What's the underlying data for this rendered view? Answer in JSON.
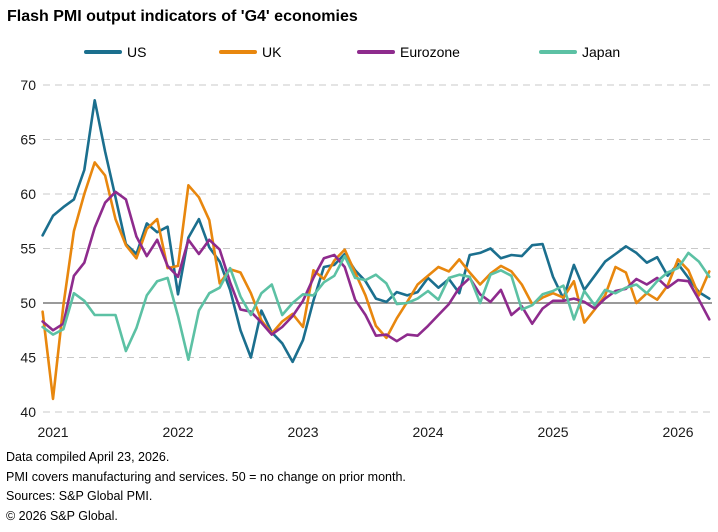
{
  "title": "Flash PMI output indicators of 'G4' economies",
  "footer": {
    "lines": [
      "Data compiled April 23, 2026.",
      "PMI covers manufacturing and services. 50 = no change on prior month.",
      "Sources: S&P Global PMI.",
      "© 2026 S&P Global."
    ]
  },
  "colors": {
    "grid_dashed": "#c9c9c9",
    "reference_line": "#8c8c8c",
    "axis_text": "#1a1a1a"
  },
  "chart_data": {
    "type": "line",
    "title": "Flash PMI output indicators of 'G4' economies",
    "frequency": "monthly",
    "x_start": "2020-12",
    "x_end": "2026-04",
    "x_tick_labels": [
      "2021",
      "2022",
      "2023",
      "2024",
      "2025",
      "2026"
    ],
    "ylim": [
      40,
      70
    ],
    "y_ticks": [
      40,
      45,
      50,
      55,
      60,
      65,
      70
    ],
    "reference_line": 50,
    "grid": "horizontal-dashed",
    "legend_position": "top",
    "series": [
      {
        "name": "US",
        "color": "#1b6f8e",
        "values": [
          56.2,
          58.0,
          58.8,
          59.5,
          62.2,
          68.6,
          63.9,
          59.7,
          55.4,
          54.5,
          57.3,
          56.5,
          57.0,
          50.8,
          56.0,
          57.7,
          55.1,
          53.8,
          51.2,
          47.5,
          45.0,
          49.3,
          47.3,
          46.3,
          44.6,
          46.6,
          50.2,
          53.3,
          53.5,
          54.5,
          53.0,
          52.0,
          50.4,
          50.1,
          51.0,
          50.7,
          51.0,
          52.3,
          51.4,
          52.2,
          50.9,
          54.4,
          54.6,
          55.0,
          54.1,
          54.4,
          54.3,
          55.3,
          55.4,
          52.4,
          50.4,
          53.5,
          51.2,
          52.5,
          53.8,
          54.5,
          55.2,
          54.6,
          53.7,
          54.2,
          52.5,
          53.6,
          52.3,
          51.0,
          50.4
        ]
      },
      {
        "name": "UK",
        "color": "#e8870e",
        "values": [
          49.2,
          41.2,
          49.8,
          56.6,
          60.0,
          62.9,
          61.7,
          57.7,
          55.3,
          54.1,
          56.8,
          57.7,
          53.2,
          53.4,
          60.8,
          59.7,
          57.6,
          51.8,
          53.1,
          52.8,
          50.9,
          48.4,
          47.2,
          48.3,
          49.0,
          47.8,
          53.0,
          52.2,
          53.9,
          54.9,
          52.8,
          50.7,
          47.9,
          46.8,
          48.6,
          50.1,
          51.7,
          52.5,
          53.3,
          52.9,
          54.0,
          52.8,
          51.7,
          52.7,
          53.4,
          52.9,
          51.7,
          49.9,
          50.5,
          50.9,
          50.5,
          52.0,
          48.2,
          49.4,
          50.7,
          53.3,
          52.8,
          50.0,
          50.9,
          50.3,
          51.6,
          54.0,
          53.0,
          50.7,
          52.9
        ]
      },
      {
        "name": "Eurozone",
        "color": "#8e2b8d",
        "values": [
          48.3,
          47.5,
          48.1,
          52.5,
          53.7,
          56.9,
          59.2,
          60.2,
          59.5,
          56.1,
          54.3,
          55.8,
          53.4,
          52.4,
          55.8,
          54.5,
          55.8,
          54.9,
          51.9,
          49.4,
          49.2,
          48.2,
          47.1,
          47.8,
          48.8,
          50.2,
          52.3,
          54.1,
          54.4,
          53.3,
          50.3,
          48.9,
          47.0,
          47.1,
          46.5,
          47.1,
          47.0,
          47.9,
          48.9,
          49.9,
          51.4,
          52.3,
          50.8,
          50.1,
          51.2,
          48.9,
          49.7,
          48.1,
          49.5,
          50.2,
          50.2,
          50.4,
          50.1,
          49.5,
          50.4,
          51.1,
          51.3,
          52.2,
          51.7,
          52.3,
          51.4,
          52.1,
          52.0,
          50.3,
          48.5
        ]
      },
      {
        "name": "Japan",
        "color": "#5cc1a4",
        "values": [
          47.8,
          47.1,
          47.6,
          50.9,
          50.2,
          48.9,
          48.9,
          48.9,
          45.6,
          47.7,
          50.7,
          52.0,
          52.3,
          48.8,
          44.8,
          49.3,
          50.9,
          51.4,
          53.2,
          50.6,
          48.9,
          50.9,
          51.7,
          48.9,
          50.0,
          50.8,
          50.7,
          51.9,
          52.5,
          54.3,
          52.3,
          52.1,
          52.6,
          51.8,
          49.9,
          50.0,
          50.4,
          51.1,
          50.3,
          52.3,
          52.6,
          52.4,
          50.0,
          52.6,
          53.0,
          52.5,
          49.4,
          49.8,
          50.8,
          51.1,
          51.6,
          48.5,
          51.1,
          49.8,
          51.2,
          50.9,
          51.4,
          51.7,
          50.9,
          52.0,
          52.8,
          53.2,
          54.6,
          53.8,
          52.4
        ]
      }
    ]
  }
}
